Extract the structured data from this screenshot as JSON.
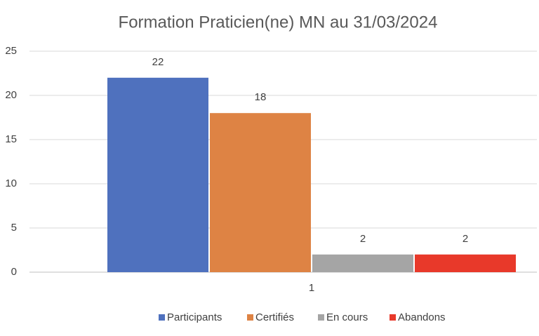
{
  "chart_data": {
    "type": "bar",
    "title": "Formation Praticien(ne) MN au 31/03/2024",
    "categories": [
      "1"
    ],
    "series": [
      {
        "name": "Participants",
        "color": "#4f71be",
        "values": [
          22
        ]
      },
      {
        "name": "Certifiés",
        "color": "#de8344",
        "values": [
          18
        ]
      },
      {
        "name": "En cours",
        "color": "#a5a5a5",
        "values": [
          2
        ]
      },
      {
        "name": "Abandons",
        "color": "#e8392a",
        "values": [
          2
        ]
      }
    ],
    "ylim": [
      0,
      25
    ],
    "yticks": [
      0,
      5,
      10,
      15,
      20,
      25
    ],
    "grid": true,
    "legend": "bottom"
  }
}
